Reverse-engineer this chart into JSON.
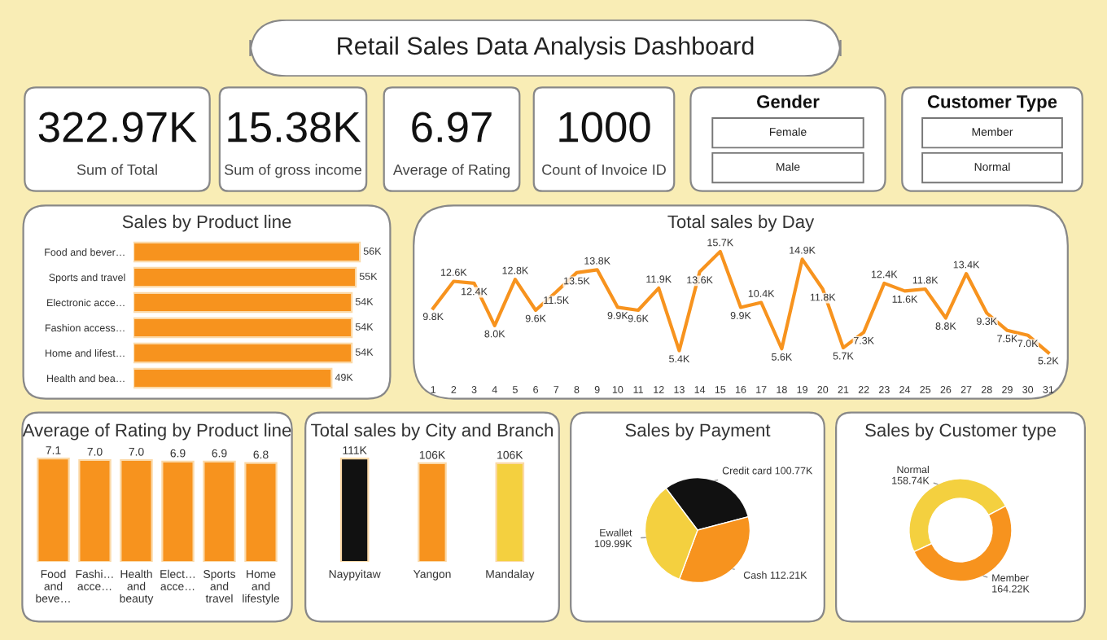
{
  "chart_data": [
    {
      "type": "other",
      "title": "Retail Sales Data Analysis Dashboard"
    },
    {
      "type": "other",
      "annotations": [
        "322.97K",
        "Sum of Total"
      ]
    },
    {
      "type": "other",
      "annotations": [
        "15.38K",
        "Sum of gross income"
      ]
    },
    {
      "type": "other",
      "annotations": [
        "6.97",
        "Average of Rating"
      ]
    },
    {
      "type": "other",
      "annotations": [
        "1000",
        "Count of Invoice ID"
      ]
    },
    {
      "type": "other",
      "title": "Gender",
      "annotations": [
        "Female",
        "Male"
      ]
    },
    {
      "type": "other",
      "title": "Customer Type",
      "annotations": [
        "Member",
        "Normal"
      ]
    },
    {
      "type": "bar",
      "orientation": "horizontal",
      "title": "Sales by Product line",
      "categories": [
        "Food and bever…",
        "Sports and travel",
        "Electronic acce…",
        "Fashion access…",
        "Home and lifest…",
        "Health and bea…"
      ],
      "values": [
        56,
        55,
        54,
        54,
        54,
        49
      ],
      "value_labels": [
        "56K",
        "55K",
        "54K",
        "54K",
        "54K",
        "49K"
      ],
      "color": "#f7931e"
    },
    {
      "type": "line",
      "title": "Total sales by Day",
      "categories": [
        "1",
        "2",
        "3",
        "4",
        "5",
        "6",
        "7",
        "8",
        "9",
        "10",
        "11",
        "12",
        "13",
        "14",
        "15",
        "16",
        "17",
        "18",
        "19",
        "20",
        "21",
        "22",
        "23",
        "24",
        "25",
        "26",
        "27",
        "28",
        "29",
        "30",
        "31"
      ],
      "values": [
        9.8,
        12.6,
        12.4,
        8.0,
        12.8,
        9.6,
        11.5,
        13.5,
        13.8,
        9.9,
        9.6,
        11.9,
        5.4,
        13.6,
        15.7,
        9.9,
        10.4,
        5.6,
        14.9,
        11.8,
        5.7,
        7.3,
        12.4,
        11.6,
        11.8,
        8.8,
        13.4,
        9.3,
        7.5,
        7.0,
        5.2
      ],
      "value_labels": [
        "9.8K",
        "12.6K",
        "12.4K",
        "8.0K",
        "12.8K",
        "9.6K",
        "11.5K",
        "13.5K",
        "13.8K",
        "9.9K",
        "9.6K",
        "11.9K",
        "5.4K",
        "13.6K",
        "15.7K",
        "9.9K",
        "10.4K",
        "5.6K",
        "14.9K",
        "11.8K",
        "5.7K",
        "7.3K",
        "12.4K",
        "11.6K",
        "11.8K",
        "8.8K",
        "13.4K",
        "9.3K",
        "7.5K",
        "7.0K",
        "5.2K"
      ],
      "color": "#f7931e",
      "marker": "none"
    },
    {
      "type": "bar",
      "title": "Average of Rating by Product line",
      "categories": [
        "Food and beve…",
        "Fashi… acce…",
        "Health and beauty",
        "Elect… acce…",
        "Sports and travel",
        "Home and lifestyle"
      ],
      "values": [
        7.1,
        7.0,
        7.0,
        6.9,
        6.9,
        6.8
      ],
      "value_labels": [
        "7.1",
        "7.0",
        "7.0",
        "6.9",
        "6.9",
        "6.8"
      ],
      "color": "#f7931e"
    },
    {
      "type": "bar",
      "title": "Total sales by City and Branch",
      "categories": [
        "Naypyitaw",
        "Yangon",
        "Mandalay"
      ],
      "values": [
        111,
        106,
        106
      ],
      "value_labels": [
        "111K",
        "106K",
        "106K"
      ],
      "colors": [
        "#111111",
        "#f7931e",
        "#f4d03f"
      ]
    },
    {
      "type": "pie",
      "title": "Sales by Payment",
      "categories": [
        "Credit card",
        "Cash",
        "Ewallet"
      ],
      "values": [
        100.77,
        112.21,
        109.99
      ],
      "value_labels": [
        "100.77K",
        "112.21K",
        "109.99K"
      ],
      "colors": [
        "#111111",
        "#f7931e",
        "#f4d03f"
      ]
    },
    {
      "type": "donut",
      "title": "Sales by Customer type",
      "categories": [
        "Normal",
        "Member"
      ],
      "values": [
        158.74,
        164.22
      ],
      "value_labels": [
        "158.74K",
        "164.22K"
      ],
      "colors": [
        "#f4d03f",
        "#f7931e"
      ]
    }
  ]
}
